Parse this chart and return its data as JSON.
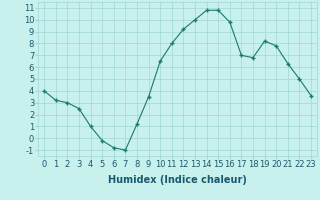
{
  "x_data": [
    0,
    1,
    2,
    3,
    4,
    5,
    6,
    7,
    8,
    9,
    10,
    11,
    12,
    13,
    14,
    15,
    16,
    17,
    18,
    19,
    20,
    21,
    22,
    23
  ],
  "y_data": [
    4,
    3.2,
    3.0,
    2.5,
    1.0,
    -0.2,
    -0.8,
    -1.0,
    1.2,
    3.5,
    6.5,
    8.0,
    9.2,
    10.0,
    10.8,
    10.8,
    9.8,
    7.0,
    6.8,
    8.2,
    7.8,
    6.3,
    5.0,
    3.6
  ],
  "line_color": "#1a7a6e",
  "marker_color": "#1a7a6e",
  "background_color": "#c8f0ec",
  "grid_color": "#a0d8d4",
  "xlabel": "Humidex (Indice chaleur)",
  "xlim": [
    -0.5,
    23.5
  ],
  "ylim": [
    -1.5,
    11.5
  ],
  "yticks": [
    -1,
    0,
    1,
    2,
    3,
    4,
    5,
    6,
    7,
    8,
    9,
    10,
    11
  ],
  "xticks": [
    0,
    1,
    2,
    3,
    4,
    5,
    6,
    7,
    8,
    9,
    10,
    11,
    12,
    13,
    14,
    15,
    16,
    17,
    18,
    19,
    20,
    21,
    22,
    23
  ],
  "xtick_labels": [
    "0",
    "1",
    "2",
    "3",
    "4",
    "5",
    "6",
    "7",
    "8",
    "9",
    "10",
    "11",
    "12",
    "13",
    "14",
    "15",
    "16",
    "17",
    "18",
    "19",
    "20",
    "21",
    "22",
    "23"
  ],
  "font_color": "#1a5a6e",
  "xlabel_fontsize": 7.0,
  "tick_fontsize": 6.0
}
